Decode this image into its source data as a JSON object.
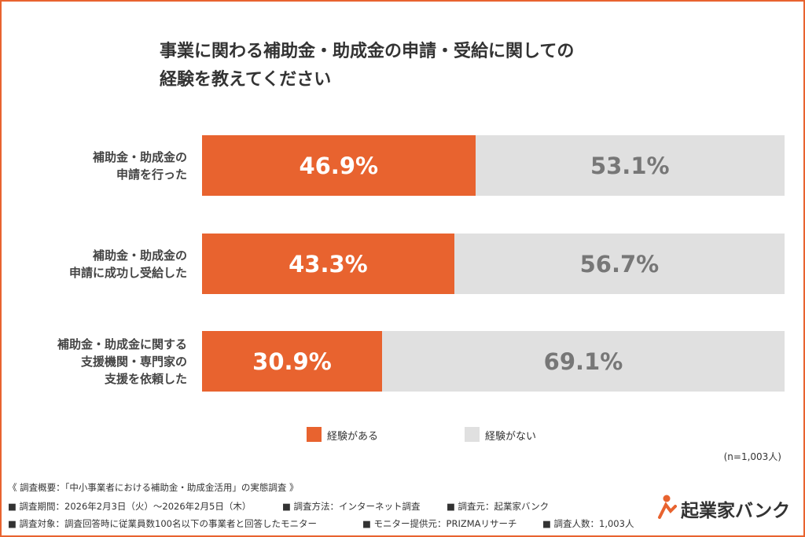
{
  "chart_data": {
    "type": "stacked_bar_horizontal",
    "title": "事業に関わる補助金・助成金の申請・受給に関しての\n経験を教えてください",
    "categories": [
      "補助金・助成金の\n申請を行った",
      "補助金・助成金の\n申請に成功し受給した",
      "補助金・助成金に関する\n支援機関・専門家の\n支援を依頼した"
    ],
    "series": [
      {
        "name": "経験がある",
        "color": "#e8632f",
        "values": [
          46.9,
          43.3,
          30.9
        ],
        "value_labels": [
          "46.9%",
          "43.3%",
          "30.9%"
        ]
      },
      {
        "name": "経験がない",
        "color": "#e0e0e0",
        "values": [
          53.1,
          56.7,
          69.1
        ],
        "value_labels": [
          "53.1%",
          "56.7%",
          "69.1%"
        ]
      }
    ],
    "xlim": [
      0,
      100
    ],
    "note": "(n=1,003人)"
  },
  "footer": {
    "heading": "《 調査概要：「中小事業者における補助金・助成金活用」の実態調査 》",
    "rows": [
      [
        "■ 調査期間：2026年2月3日（火）～2026年2月5日（木）",
        "■ 調査方法：インターネット調査",
        "■ 調査元：起業家バンク"
      ],
      [
        "■ 調査対象：調査回答時に従業員数100名以下の事業者と回答したモニター",
        "■ モニター提供元：PRIZMAリサーチ",
        "■ 調査人数：1,003人"
      ]
    ],
    "logo": "起業家バンク"
  }
}
